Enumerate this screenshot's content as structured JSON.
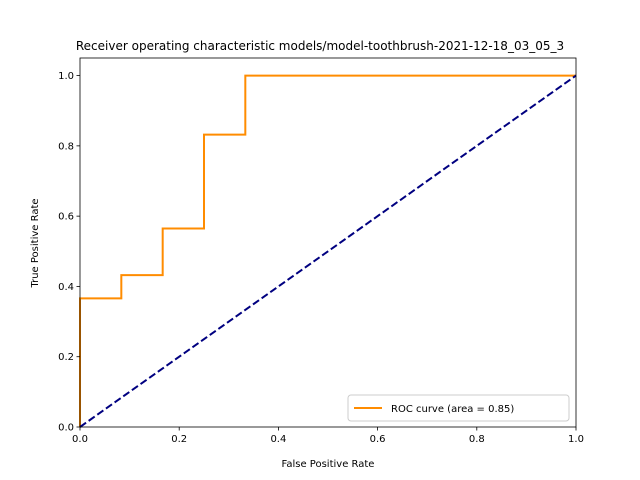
{
  "chart_data": {
    "type": "line",
    "title": "Receiver operating characteristic models/model-toothbrush-2021-12-18_03_05_3",
    "xlabel": "False Positive Rate",
    "ylabel": "True Positive Rate",
    "xlim": [
      0.0,
      1.0
    ],
    "ylim": [
      0.0,
      1.05
    ],
    "xticks": [
      "0.0",
      "0.2",
      "0.4",
      "0.6",
      "0.8",
      "1.0"
    ],
    "yticks": [
      "0.0",
      "0.2",
      "0.4",
      "0.6",
      "0.8",
      "1.0"
    ],
    "grid": false,
    "legend_position": "lower-right",
    "series": [
      {
        "name": "ROC curve (area = 0.85)",
        "color": "#ff8c00",
        "style": "solid",
        "x": [
          0.0,
          0.0,
          0.0833,
          0.0833,
          0.1667,
          0.1667,
          0.25,
          0.25,
          0.3333,
          0.3333,
          1.0
        ],
        "y": [
          0.0,
          0.366,
          0.366,
          0.432,
          0.432,
          0.565,
          0.565,
          0.832,
          0.832,
          1.0,
          1.0
        ]
      },
      {
        "name": "",
        "color": "#000080",
        "style": "dashed",
        "x": [
          0.0,
          1.0
        ],
        "y": [
          0.0,
          1.0
        ]
      }
    ]
  }
}
